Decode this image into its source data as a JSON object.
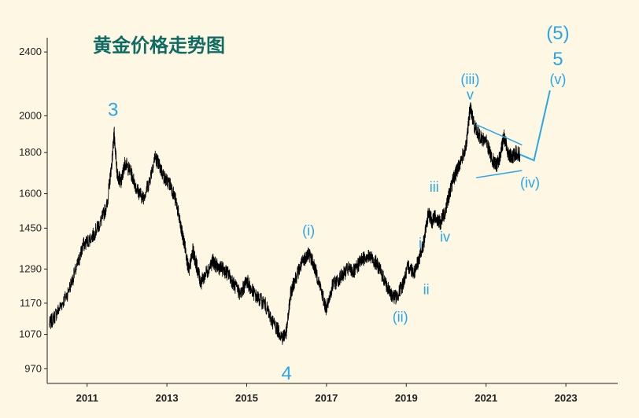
{
  "colors": {
    "background": "#fdf7e3",
    "price_line": "#000000",
    "wave_annotation": "#29a6e8",
    "title": "#0f6b63",
    "axis": "#222222"
  },
  "chart_data": {
    "type": "line",
    "title": "黄金价格走势图",
    "xlabel": "",
    "ylabel": "",
    "y_scale": "log",
    "ylim": [
      930,
      2500
    ],
    "xlim": [
      2010.0,
      2024.3
    ],
    "y_ticks": [
      970,
      1070,
      1170,
      1290,
      1450,
      1600,
      1800,
      2000,
      2400
    ],
    "x_ticks": [
      2011,
      2013,
      2015,
      2017,
      2019,
      2021,
      2023
    ],
    "grid": false,
    "series": [
      {
        "x": [
          2010.05,
          2010.25,
          2010.5,
          2010.75,
          2010.9,
          2011.15,
          2011.35,
          2011.5,
          2011.62,
          2011.68,
          2011.75,
          2011.85,
          2011.95,
          2012.1,
          2012.25,
          2012.4,
          2012.55,
          2012.7,
          2012.8,
          2012.95,
          2013.1,
          2013.25,
          2013.35,
          2013.45,
          2013.55,
          2013.65,
          2013.75,
          2013.85,
          2014.0,
          2014.15,
          2014.25,
          2014.4,
          2014.55,
          2014.7,
          2014.85,
          2015.0,
          2015.1,
          2015.25,
          2015.45,
          2015.6,
          2015.75,
          2015.9,
          2016.0,
          2016.1,
          2016.2,
          2016.35,
          2016.45,
          2016.55,
          2016.65,
          2016.8,
          2016.95,
          2017.0,
          2017.15,
          2017.35,
          2017.55,
          2017.7,
          2017.85,
          2018.0,
          2018.15,
          2018.3,
          2018.45,
          2018.6,
          2018.75,
          2018.9,
          2019.05,
          2019.2,
          2019.35,
          2019.45,
          2019.55,
          2019.65,
          2019.72,
          2019.85,
          2019.97,
          2020.05,
          2020.15,
          2020.25,
          2020.35,
          2020.5,
          2020.6,
          2020.7,
          2020.85,
          2021.0,
          2021.15,
          2021.25,
          2021.35,
          2021.45,
          2021.55,
          2021.65,
          2021.75,
          2021.85
        ],
        "y": [
          1100,
          1140,
          1200,
          1300,
          1380,
          1420,
          1480,
          1550,
          1750,
          1900,
          1700,
          1650,
          1750,
          1700,
          1620,
          1580,
          1650,
          1780,
          1740,
          1670,
          1640,
          1550,
          1450,
          1380,
          1280,
          1360,
          1300,
          1240,
          1280,
          1320,
          1300,
          1290,
          1270,
          1230,
          1200,
          1250,
          1220,
          1190,
          1170,
          1120,
          1090,
          1060,
          1080,
          1200,
          1250,
          1300,
          1330,
          1350,
          1320,
          1250,
          1170,
          1150,
          1230,
          1260,
          1290,
          1280,
          1320,
          1340,
          1330,
          1300,
          1250,
          1200,
          1190,
          1230,
          1300,
          1280,
          1340,
          1400,
          1510,
          1480,
          1500,
          1470,
          1520,
          1580,
          1650,
          1700,
          1750,
          1830,
          2050,
          1950,
          1880,
          1860,
          1770,
          1730,
          1780,
          1890,
          1800,
          1770,
          1800,
          1790
        ]
      }
    ],
    "projection": {
      "x": [
        2021.85,
        2022.2,
        2022.6
      ],
      "y": [
        1790,
        1760,
        2150
      ]
    },
    "triangle": [
      {
        "x": [
          2020.75,
          2021.9
        ],
        "y": [
          1950,
          1840
        ]
      },
      {
        "x": [
          2020.75,
          2021.9
        ],
        "y": [
          1675,
          1710
        ]
      }
    ],
    "annotations": [
      {
        "text": "3",
        "x": 2011.65,
        "y": 2000,
        "size": "large"
      },
      {
        "text": "4",
        "x": 2016.0,
        "y": 940,
        "size": "large"
      },
      {
        "text": "(i)",
        "x": 2016.55,
        "y": 1420,
        "size": "small"
      },
      {
        "text": "(ii)",
        "x": 2018.85,
        "y": 1110,
        "size": "small"
      },
      {
        "text": "i",
        "x": 2019.35,
        "y": 1370,
        "size": "small"
      },
      {
        "text": "ii",
        "x": 2019.5,
        "y": 1200,
        "size": "small"
      },
      {
        "text": "iii",
        "x": 2019.7,
        "y": 1610,
        "size": "small"
      },
      {
        "text": "iv",
        "x": 2019.97,
        "y": 1395,
        "size": "small"
      },
      {
        "text": "(iii)",
        "x": 2020.6,
        "y": 2190,
        "size": "small"
      },
      {
        "text": "v",
        "x": 2020.6,
        "y": 2095,
        "size": "small"
      },
      {
        "text": "(iv)",
        "x": 2022.1,
        "y": 1630,
        "size": "small"
      },
      {
        "text": "(v)",
        "x": 2022.8,
        "y": 2190,
        "size": "small"
      },
      {
        "text": "5",
        "x": 2022.8,
        "y": 2310,
        "size": "large"
      },
      {
        "text": "(5)",
        "x": 2022.8,
        "y": 2490,
        "size": "large"
      }
    ]
  }
}
